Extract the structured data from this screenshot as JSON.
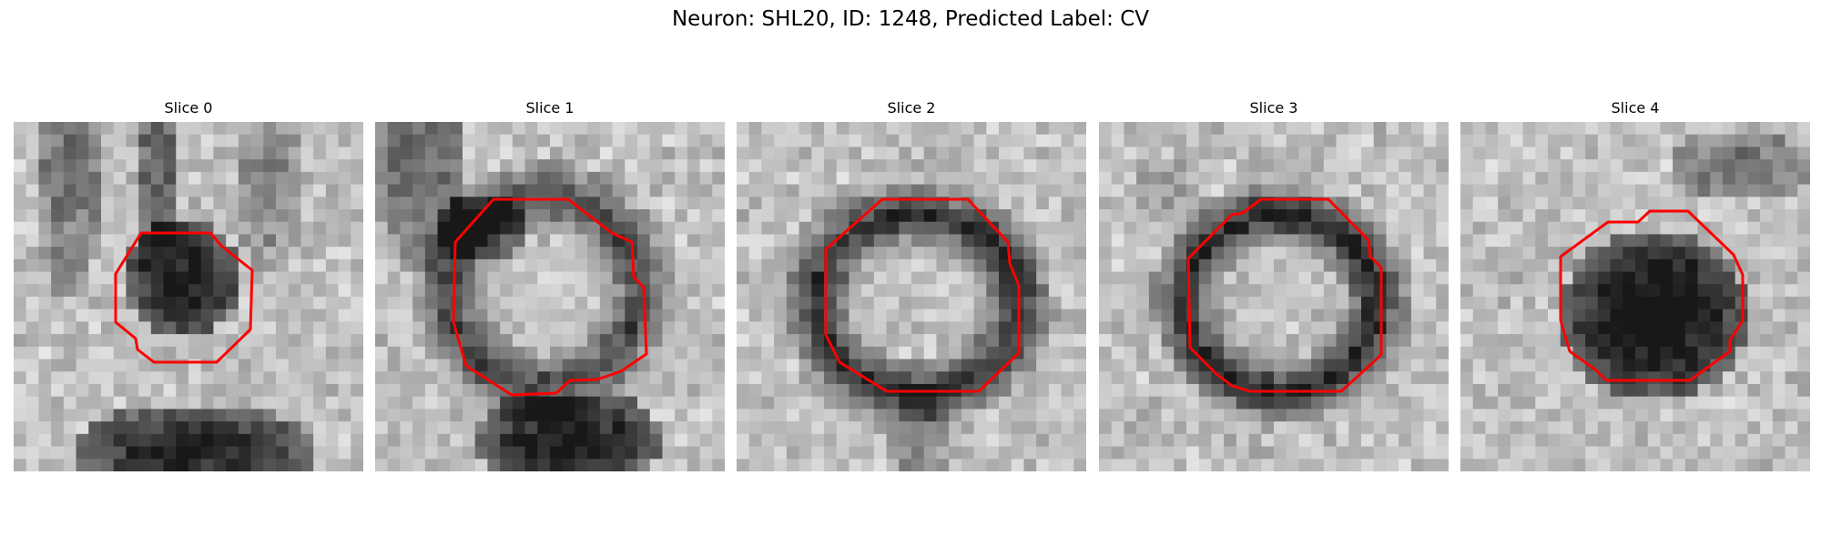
{
  "figure": {
    "title": "Neuron: SHL20, ID: 1248, Predicted Label: CV"
  },
  "panels": [
    {
      "title": "Slice 0"
    },
    {
      "title": "Slice 1"
    },
    {
      "title": "Slice 2"
    },
    {
      "title": "Slice 3"
    },
    {
      "title": "Slice 4"
    }
  ],
  "colors": {
    "contour": "#ff0000",
    "dark": "#0c0c0c",
    "light": "#f6f6f6"
  },
  "icons": {
    "image": "grayscale-microscopy-slice",
    "overlay": "red-octagon-contour"
  }
}
